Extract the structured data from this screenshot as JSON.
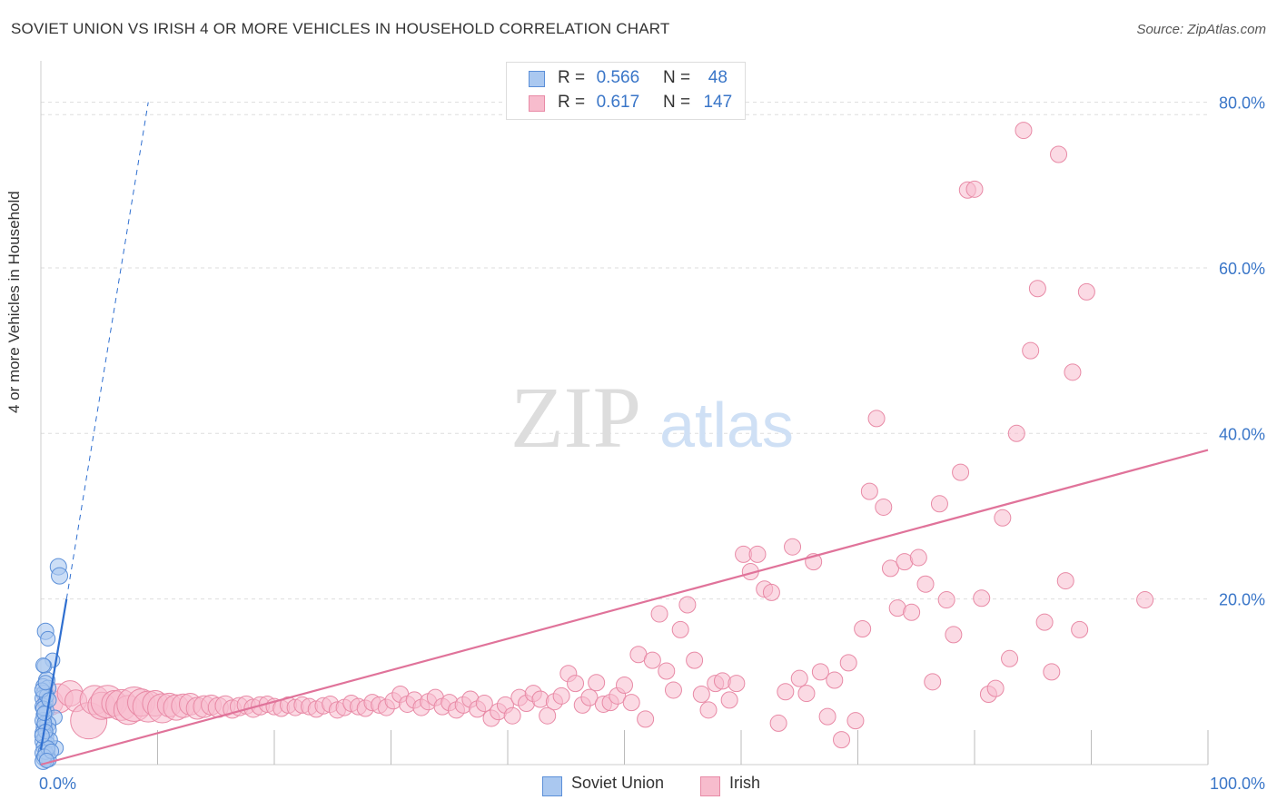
{
  "title": "SOVIET UNION VS IRISH 4 OR MORE VEHICLES IN HOUSEHOLD CORRELATION CHART",
  "source": "Source: ZipAtlas.com",
  "watermark": {
    "zip": "ZIP",
    "atlas": "atlas"
  },
  "legend_top": {
    "soviet": {
      "r_label": "R =",
      "r_value": "0.566",
      "n_label": "N =",
      "n_value": "48"
    },
    "irish": {
      "r_label": "R =",
      "r_value": "0.617",
      "n_label": "N =",
      "n_value": "147"
    }
  },
  "legend_bottom": {
    "soviet": "Soviet Union",
    "irish": "Irish"
  },
  "colors": {
    "soviet_fill": "#aac8f0",
    "soviet_stroke": "#5b8fd8",
    "soviet_line": "#2f6fd0",
    "irish_fill": "#f7bccd",
    "irish_stroke": "#e88aa6",
    "irish_line": "#e0739a",
    "tick_text": "#3a76c8",
    "grid": "#dddddd"
  },
  "chart_data": {
    "type": "scatter",
    "title": "SOVIET UNION VS IRISH 4 OR MORE VEHICLES IN HOUSEHOLD CORRELATION CHART",
    "xlabel": "",
    "ylabel": "4 or more Vehicles in Household",
    "xlim": [
      0,
      100
    ],
    "ylim": [
      0,
      85
    ],
    "x_ticks": [
      {
        "value": 0,
        "label": "0.0%"
      },
      {
        "value": 100,
        "label": "100.0%"
      }
    ],
    "y_ticks": [
      {
        "value": 20,
        "label": "20.0%"
      },
      {
        "value": 40,
        "label": "40.0%"
      },
      {
        "value": 60,
        "label": "60.0%"
      },
      {
        "value": 80,
        "label": "80.0%"
      }
    ],
    "grid": true,
    "legend_position": "top-center",
    "series": [
      {
        "name": "Soviet Union",
        "points": [
          [
            1.5,
            23.9,
            9
          ],
          [
            1.6,
            22.8,
            9
          ],
          [
            0.4,
            16.1,
            9
          ],
          [
            0.6,
            15.2,
            8
          ],
          [
            1.0,
            12.6,
            8
          ],
          [
            0.3,
            11.9,
            8
          ],
          [
            0.5,
            10.2,
            9
          ],
          [
            0.2,
            9.5,
            8
          ],
          [
            0.6,
            9.2,
            9
          ],
          [
            0.3,
            8.6,
            9
          ],
          [
            0.2,
            8.0,
            9
          ],
          [
            0.4,
            7.5,
            8
          ],
          [
            0.2,
            7.0,
            9
          ],
          [
            0.5,
            6.5,
            8
          ],
          [
            0.3,
            6.0,
            9
          ],
          [
            1.2,
            5.7,
            8
          ],
          [
            0.2,
            5.3,
            9
          ],
          [
            0.6,
            4.9,
            9
          ],
          [
            0.3,
            4.5,
            9
          ],
          [
            0.7,
            4.2,
            8
          ],
          [
            0.2,
            3.8,
            9
          ],
          [
            0.4,
            3.3,
            9
          ],
          [
            0.2,
            2.8,
            9
          ],
          [
            0.6,
            2.5,
            8
          ],
          [
            0.3,
            2.1,
            9
          ],
          [
            1.3,
            2.0,
            8
          ],
          [
            0.5,
            1.8,
            9
          ],
          [
            0.2,
            1.4,
            9
          ],
          [
            0.6,
            1.1,
            8
          ],
          [
            0.3,
            0.8,
            9
          ],
          [
            0.7,
            0.6,
            8
          ],
          [
            0.2,
            0.4,
            9
          ],
          [
            0.4,
            1.5,
            8
          ],
          [
            0.8,
            3.0,
            8
          ],
          [
            0.3,
            5.0,
            8
          ],
          [
            0.5,
            8.3,
            8
          ],
          [
            0.2,
            6.8,
            8
          ],
          [
            0.4,
            4.0,
            8
          ],
          [
            0.6,
            2.0,
            8
          ],
          [
            0.3,
            1.0,
            8
          ],
          [
            0.1,
            9.0,
            8
          ],
          [
            0.1,
            3.5,
            8
          ],
          [
            0.9,
            1.6,
            8
          ],
          [
            0.5,
            0.5,
            8
          ],
          [
            0.2,
            12.0,
            8
          ],
          [
            0.7,
            7.8,
            8
          ],
          [
            0.4,
            9.9,
            8
          ],
          [
            0.3,
            6.2,
            8
          ]
        ],
        "trend": {
          "from": [
            0,
            1.8
          ],
          "to": [
            2.2,
            20.0
          ],
          "dashed_to": [
            9.2,
            80.0
          ]
        }
      },
      {
        "name": "Irish",
        "points": [
          [
            0.8,
            7.5,
            14
          ],
          [
            1.5,
            8.0,
            16
          ],
          [
            2.5,
            8.6,
            14
          ],
          [
            3.0,
            7.7,
            12
          ],
          [
            4.1,
            5.3,
            20
          ],
          [
            4.6,
            7.8,
            16
          ],
          [
            5.2,
            7.1,
            15
          ],
          [
            5.7,
            7.6,
            18
          ],
          [
            6.3,
            7.4,
            14
          ],
          [
            6.9,
            7.2,
            17
          ],
          [
            7.5,
            6.6,
            16
          ],
          [
            8.0,
            7.3,
            19
          ],
          [
            8.6,
            7.5,
            15
          ],
          [
            9.2,
            7.0,
            17
          ],
          [
            9.8,
            7.4,
            14
          ],
          [
            10.4,
            6.8,
            16
          ],
          [
            11.0,
            7.2,
            13
          ],
          [
            11.6,
            6.9,
            14
          ],
          [
            12.2,
            7.1,
            13
          ],
          [
            12.8,
            7.3,
            12
          ],
          [
            13.4,
            6.8,
            12
          ],
          [
            14.0,
            7.0,
            12
          ],
          [
            14.6,
            7.2,
            11
          ],
          [
            15.2,
            6.9,
            11
          ],
          [
            15.8,
            7.1,
            11
          ],
          [
            16.4,
            6.7,
            10
          ],
          [
            17.0,
            7.0,
            10
          ],
          [
            17.6,
            7.2,
            10
          ],
          [
            18.2,
            6.8,
            10
          ],
          [
            18.8,
            7.1,
            10
          ],
          [
            19.4,
            7.3,
            9
          ],
          [
            20.0,
            7.0,
            9
          ],
          [
            20.6,
            6.8,
            9
          ],
          [
            21.2,
            7.2,
            9
          ],
          [
            21.8,
            6.9,
            9
          ],
          [
            22.4,
            7.2,
            9
          ],
          [
            23.0,
            7.0,
            9
          ],
          [
            23.6,
            6.7,
            9
          ],
          [
            24.2,
            7.1,
            9
          ],
          [
            24.8,
            7.3,
            9
          ],
          [
            25.4,
            6.6,
            9
          ],
          [
            26.0,
            6.9,
            9
          ],
          [
            26.6,
            7.4,
            9
          ],
          [
            27.2,
            7.0,
            9
          ],
          [
            27.8,
            6.8,
            9
          ],
          [
            28.4,
            7.5,
            9
          ],
          [
            29.0,
            7.2,
            9
          ],
          [
            29.6,
            6.9,
            9
          ],
          [
            30.2,
            7.7,
            9
          ],
          [
            30.8,
            8.5,
            9
          ],
          [
            31.4,
            7.3,
            9
          ],
          [
            32.0,
            7.8,
            9
          ],
          [
            32.6,
            6.9,
            9
          ],
          [
            33.2,
            7.6,
            9
          ],
          [
            33.8,
            8.1,
            9
          ],
          [
            34.4,
            7.0,
            9
          ],
          [
            35.0,
            7.5,
            9
          ],
          [
            35.6,
            6.6,
            9
          ],
          [
            36.2,
            7.2,
            9
          ],
          [
            36.8,
            7.9,
            9
          ],
          [
            37.4,
            6.7,
            9
          ],
          [
            38.0,
            7.4,
            9
          ],
          [
            38.6,
            5.6,
            9
          ],
          [
            39.2,
            6.4,
            9
          ],
          [
            39.8,
            7.2,
            9
          ],
          [
            40.4,
            5.9,
            9
          ],
          [
            41.0,
            8.1,
            9
          ],
          [
            41.6,
            7.4,
            9
          ],
          [
            42.2,
            8.6,
            9
          ],
          [
            42.8,
            7.9,
            9
          ],
          [
            43.4,
            5.9,
            9
          ],
          [
            44.0,
            7.6,
            9
          ],
          [
            44.6,
            8.3,
            9
          ],
          [
            45.2,
            11.0,
            9
          ],
          [
            45.8,
            9.8,
            9
          ],
          [
            46.4,
            7.2,
            9
          ],
          [
            47.0,
            8.1,
            9
          ],
          [
            47.6,
            9.9,
            9
          ],
          [
            48.2,
            7.3,
            9
          ],
          [
            48.8,
            7.5,
            9
          ],
          [
            49.4,
            8.3,
            9
          ],
          [
            50.0,
            9.6,
            9
          ],
          [
            50.6,
            7.5,
            9
          ],
          [
            51.2,
            13.3,
            9
          ],
          [
            51.8,
            5.5,
            9
          ],
          [
            52.4,
            12.6,
            9
          ],
          [
            53.0,
            18.2,
            9
          ],
          [
            53.6,
            11.3,
            9
          ],
          [
            54.2,
            9.0,
            9
          ],
          [
            54.8,
            16.3,
            9
          ],
          [
            55.4,
            19.3,
            9
          ],
          [
            56.0,
            12.6,
            9
          ],
          [
            56.6,
            8.5,
            9
          ],
          [
            57.2,
            6.6,
            9
          ],
          [
            57.8,
            9.8,
            9
          ],
          [
            58.4,
            10.1,
            9
          ],
          [
            59.0,
            7.8,
            9
          ],
          [
            59.6,
            9.8,
            9
          ],
          [
            60.2,
            25.4,
            9
          ],
          [
            60.8,
            23.3,
            9
          ],
          [
            61.4,
            25.4,
            9
          ],
          [
            62.0,
            21.2,
            9
          ],
          [
            62.6,
            20.8,
            9
          ],
          [
            63.2,
            5.0,
            9
          ],
          [
            63.8,
            8.8,
            9
          ],
          [
            64.4,
            26.3,
            9
          ],
          [
            65.0,
            10.4,
            9
          ],
          [
            65.6,
            8.6,
            9
          ],
          [
            66.2,
            24.5,
            9
          ],
          [
            66.8,
            11.2,
            9
          ],
          [
            67.4,
            5.8,
            9
          ],
          [
            68.0,
            10.2,
            9
          ],
          [
            68.6,
            3.0,
            9
          ],
          [
            69.2,
            12.3,
            9
          ],
          [
            69.8,
            5.3,
            9
          ],
          [
            70.4,
            16.4,
            9
          ],
          [
            71.0,
            33.0,
            9
          ],
          [
            71.6,
            41.8,
            9
          ],
          [
            72.2,
            31.1,
            9
          ],
          [
            72.8,
            23.7,
            9
          ],
          [
            73.4,
            18.9,
            9
          ],
          [
            74.0,
            24.5,
            9
          ],
          [
            74.6,
            18.4,
            9
          ],
          [
            75.2,
            25.0,
            9
          ],
          [
            75.8,
            21.8,
            9
          ],
          [
            76.4,
            10.0,
            9
          ],
          [
            77.0,
            31.5,
            9
          ],
          [
            77.6,
            19.9,
            9
          ],
          [
            78.2,
            15.7,
            9
          ],
          [
            78.8,
            35.3,
            9
          ],
          [
            79.4,
            69.4,
            9
          ],
          [
            80.0,
            69.5,
            9
          ],
          [
            80.6,
            20.1,
            9
          ],
          [
            81.2,
            8.5,
            9
          ],
          [
            81.8,
            9.2,
            9
          ],
          [
            82.4,
            29.8,
            9
          ],
          [
            83.0,
            12.8,
            9
          ],
          [
            83.6,
            40.0,
            9
          ],
          [
            84.2,
            76.6,
            9
          ],
          [
            84.8,
            50.0,
            9
          ],
          [
            85.4,
            57.5,
            9
          ],
          [
            86.0,
            17.2,
            9
          ],
          [
            86.6,
            11.2,
            9
          ],
          [
            87.2,
            73.7,
            9
          ],
          [
            87.8,
            22.2,
            9
          ],
          [
            88.4,
            47.4,
            9
          ],
          [
            89.0,
            16.3,
            9
          ],
          [
            89.6,
            57.1,
            9
          ],
          [
            94.6,
            19.9,
            9
          ]
        ],
        "trend": {
          "from": [
            0,
            0.0
          ],
          "to": [
            100,
            38.0
          ]
        }
      }
    ]
  }
}
